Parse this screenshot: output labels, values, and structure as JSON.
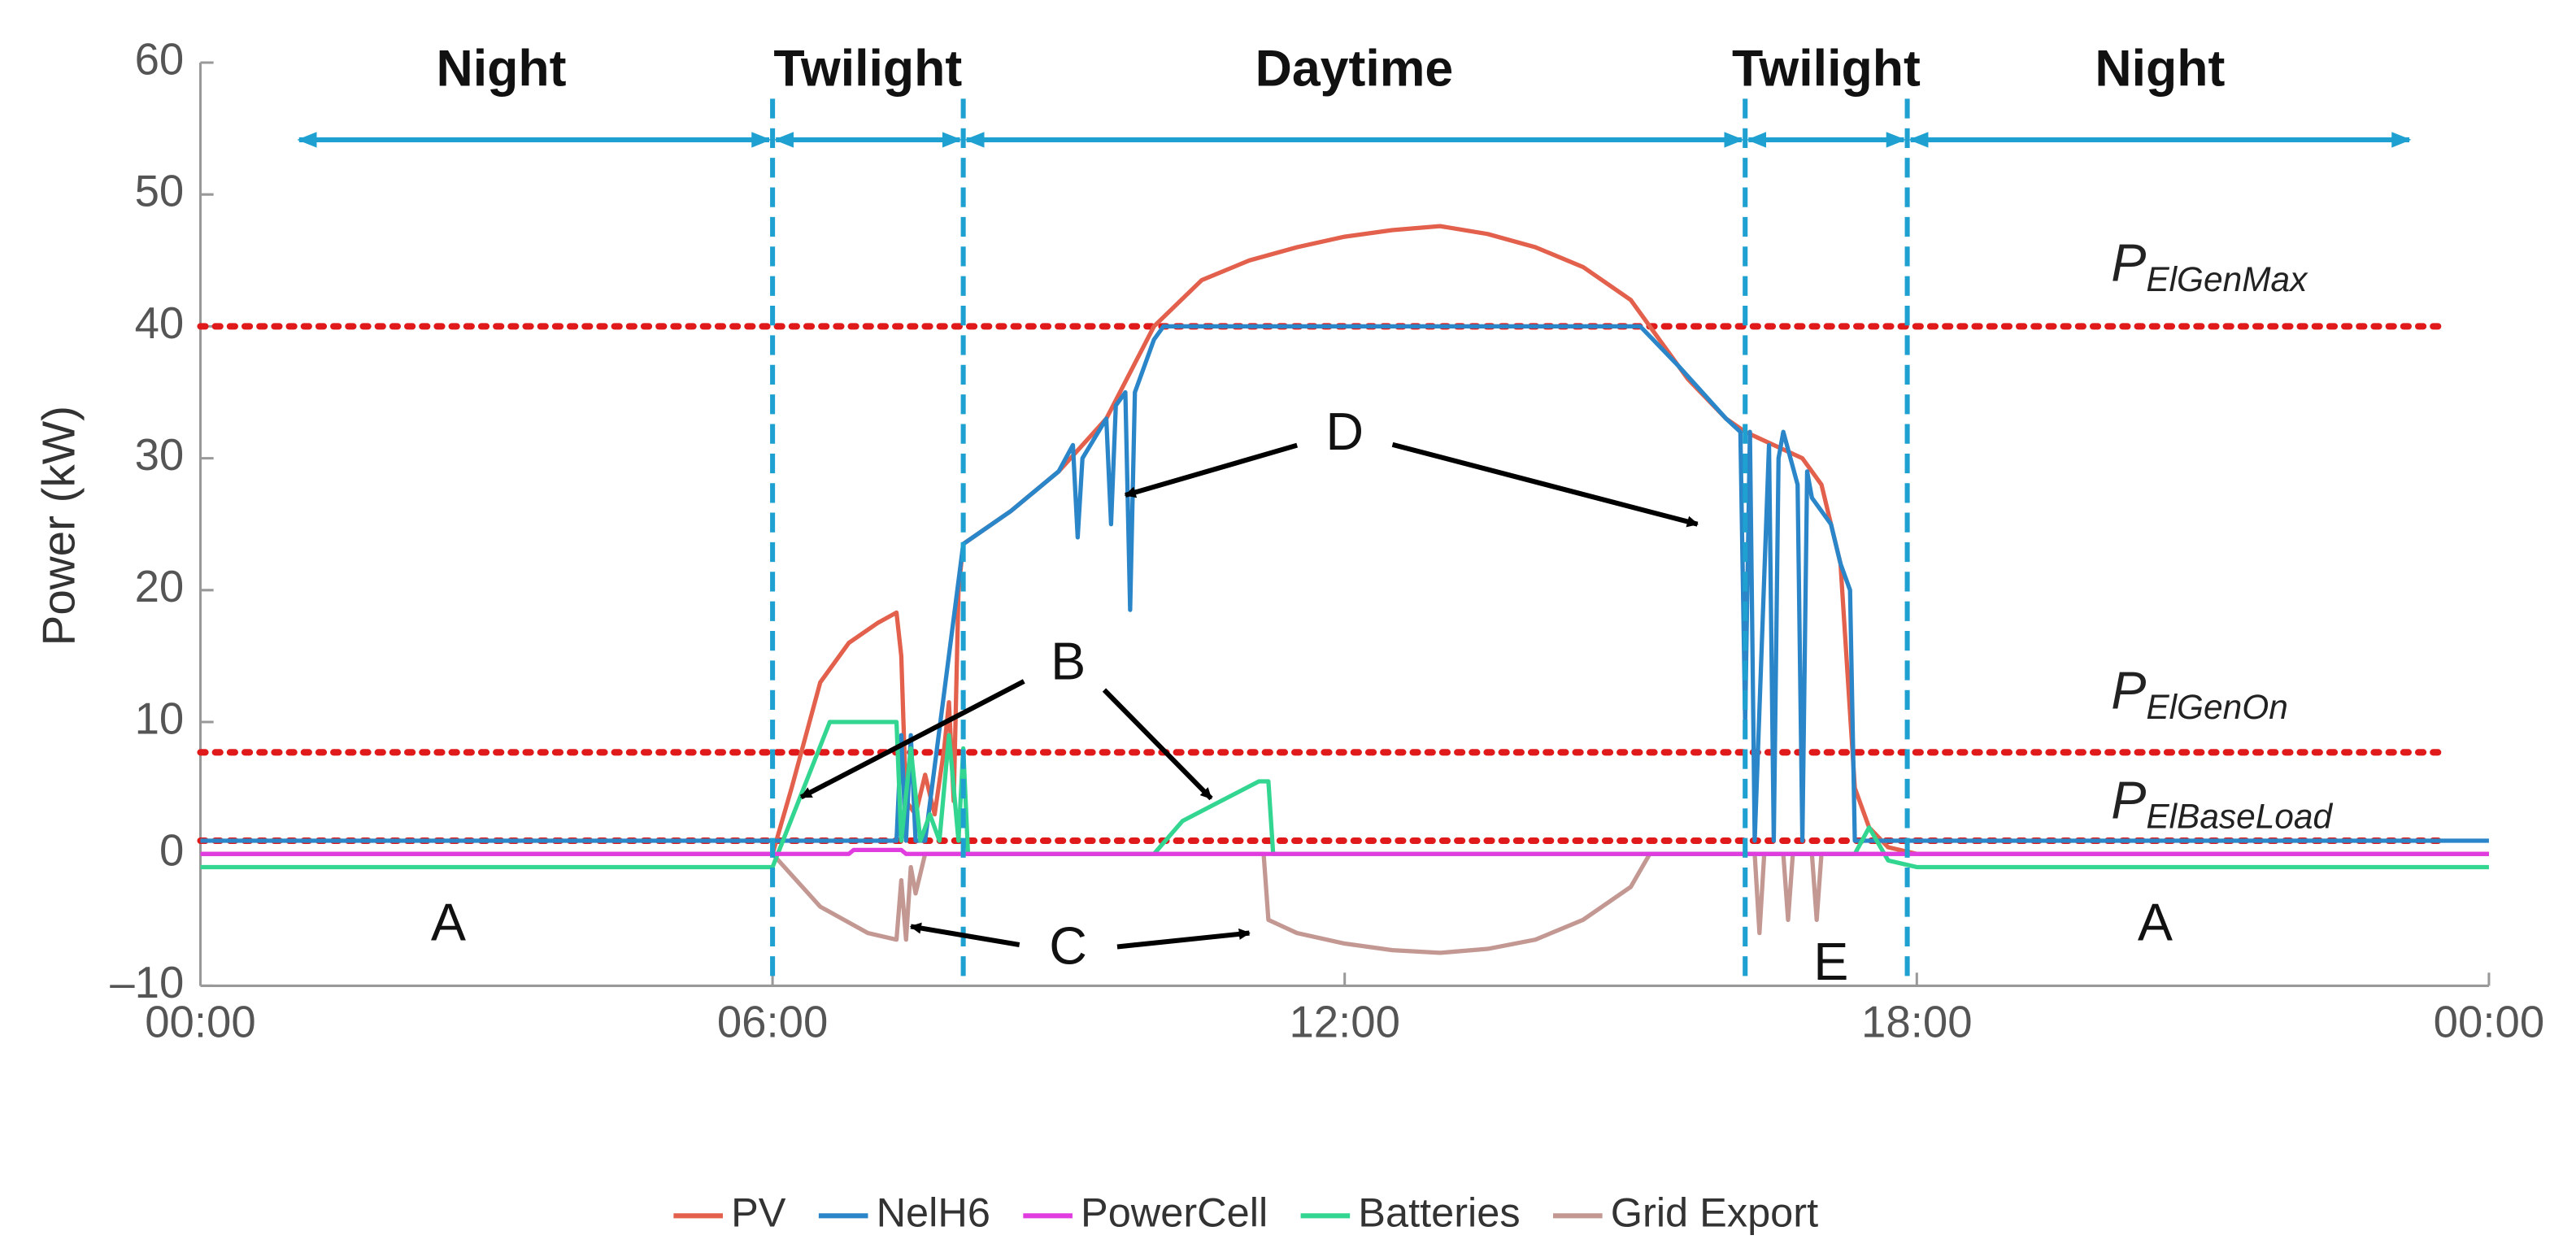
{
  "chart_data": {
    "type": "line",
    "y_label": "Power (kW)",
    "xlim": [
      0,
      24
    ],
    "ylim": [
      -10,
      60
    ],
    "xticks": [
      {
        "value": 0,
        "label": "00:00"
      },
      {
        "value": 6,
        "label": "06:00"
      },
      {
        "value": 12,
        "label": "12:00"
      },
      {
        "value": 18,
        "label": "18:00"
      },
      {
        "value": 24,
        "label": "00:00"
      }
    ],
    "yticks": [
      {
        "value": -10,
        "label": "–10"
      },
      0,
      10,
      20,
      30,
      40,
      50,
      60
    ],
    "series": [
      {
        "name": "PV",
        "color": "#e2604c",
        "x": [
          0,
          6.0,
          6.2,
          6.5,
          6.8,
          7.1,
          7.3,
          7.35,
          7.4,
          7.5,
          7.6,
          7.7,
          7.8,
          7.85,
          7.9,
          7.95,
          8.0,
          8.5,
          9.0,
          9.5,
          10.0,
          10.5,
          11.0,
          11.5,
          12.0,
          12.5,
          13.0,
          13.5,
          14.0,
          14.5,
          15.0,
          15.3,
          15.6,
          16.0,
          16.2,
          16.5,
          16.8,
          17.0,
          17.2,
          17.35,
          17.5,
          17.7,
          18.0,
          24
        ],
        "values": [
          0,
          0,
          5,
          13,
          16,
          17.5,
          18.3,
          15,
          4,
          3,
          6,
          3,
          8,
          11.5,
          4,
          20,
          23.5,
          26,
          29,
          33,
          40,
          43.5,
          45,
          46,
          46.8,
          47.3,
          47.6,
          47,
          46,
          44.5,
          42,
          39,
          36,
          33,
          32,
          31,
          30,
          28,
          22,
          5,
          2,
          0.5,
          0,
          0
        ]
      },
      {
        "name": "NelH6",
        "color": "#2a86c8",
        "x": [
          0,
          6.0,
          7.3,
          7.35,
          7.4,
          7.45,
          7.5,
          7.6,
          8.0,
          8.5,
          9.0,
          9.15,
          9.2,
          9.25,
          9.5,
          9.55,
          9.6,
          9.7,
          9.75,
          9.8,
          10.0,
          10.1,
          15.1,
          15.5,
          16.0,
          16.15,
          16.2,
          16.25,
          16.3,
          16.45,
          16.5,
          16.55,
          16.6,
          16.75,
          16.8,
          16.85,
          16.9,
          17.1,
          17.2,
          17.3,
          17.35,
          17.4,
          24
        ],
        "values": [
          1,
          1,
          1,
          9,
          1,
          9,
          1,
          1,
          23.5,
          26,
          29,
          31,
          24,
          30,
          33,
          25,
          34,
          35,
          18.5,
          35,
          39,
          40,
          40,
          37,
          33,
          32,
          10,
          32,
          1,
          31,
          1,
          30,
          32,
          28,
          1,
          29,
          27,
          25,
          22,
          20,
          1,
          1,
          1
        ]
      },
      {
        "name": "PowerCell",
        "color": "#e03ce0",
        "x": [
          0,
          6.8,
          6.85,
          7.35,
          7.4,
          24
        ],
        "values": [
          0,
          0,
          0.3,
          0.3,
          0,
          0
        ]
      },
      {
        "name": "Batteries",
        "color": "#32d690",
        "x": [
          0,
          6.0,
          6.6,
          7.3,
          7.35,
          7.45,
          7.55,
          7.65,
          7.75,
          7.85,
          7.95,
          8.0,
          8.05,
          10.0,
          10.3,
          10.7,
          11.1,
          11.2,
          11.25,
          17.35,
          17.5,
          17.7,
          18.0,
          18.5,
          24
        ],
        "values": [
          -1,
          -1,
          10,
          10,
          1,
          8,
          1,
          3,
          1,
          9,
          1,
          8,
          0,
          0,
          2.5,
          4,
          5.5,
          5.5,
          0,
          0,
          2,
          -0.5,
          -1,
          -1,
          -1
        ]
      },
      {
        "name": "Grid Export",
        "color": "#c39892",
        "x": [
          0,
          6.0,
          6.5,
          7.0,
          7.3,
          7.35,
          7.4,
          7.45,
          7.5,
          7.6,
          8.0,
          11.15,
          11.2,
          11.5,
          12.0,
          12.5,
          13.0,
          13.5,
          14.0,
          14.5,
          15.0,
          15.2,
          16.3,
          16.35,
          16.4,
          16.6,
          16.65,
          16.7,
          16.9,
          16.95,
          17.0,
          24
        ],
        "values": [
          0,
          0,
          -4,
          -6,
          -6.5,
          -2,
          -6.5,
          -1,
          -3,
          0,
          0,
          0,
          -5,
          -6,
          -6.8,
          -7.3,
          -7.5,
          -7.2,
          -6.5,
          -5,
          -2.5,
          0,
          0,
          -6,
          0,
          0,
          -5,
          0,
          0,
          -5,
          0,
          0
        ]
      }
    ],
    "phases": [
      {
        "label": "Night",
        "start": 1.0,
        "end": 6.0
      },
      {
        "label": "Twilight",
        "start": 6.0,
        "end": 8.0
      },
      {
        "label": "Daytime",
        "start": 8.0,
        "end": 16.2
      },
      {
        "label": "Twilight",
        "start": 16.2,
        "end": 17.9
      },
      {
        "label": "Night",
        "start": 17.9,
        "end": 23.2
      }
    ],
    "phase_color": "#1ea0d0",
    "vlines": [
      6.0,
      8.0,
      16.2,
      17.9
    ],
    "hlines": [
      {
        "value": 40,
        "symbol": "P",
        "subscript": "ElGenMax"
      },
      {
        "value": 7.7,
        "symbol": "P",
        "subscript": "ElGenOn"
      },
      {
        "value": 1,
        "symbol": "P",
        "subscript": "ElBaseLoad"
      }
    ],
    "hline_color": "#e01a1a",
    "annotations": [
      {
        "label": "A",
        "x": 2.6,
        "y": -5.5
      },
      {
        "label": "A",
        "x": 20.5,
        "y": -5.5
      },
      {
        "label": "B",
        "x": 9.1,
        "y": 14.3,
        "targets": [
          [
            6.3,
            4.3
          ],
          [
            10.6,
            4.2
          ]
        ]
      },
      {
        "label": "C",
        "x": 9.1,
        "y": -7.3,
        "targets": [
          [
            7.45,
            -5.5
          ],
          [
            11.0,
            -6.0
          ]
        ]
      },
      {
        "label": "D",
        "x": 12.0,
        "y": 31.7,
        "targets": [
          [
            9.7,
            27.2
          ],
          [
            15.7,
            25.0
          ]
        ]
      },
      {
        "label": "E",
        "x": 17.1,
        "y": -8.5
      }
    ]
  }
}
